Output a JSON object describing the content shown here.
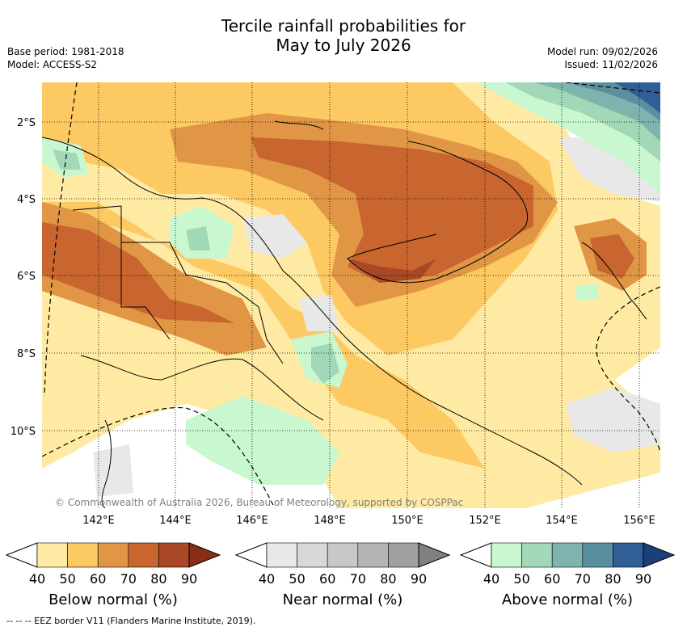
{
  "title": {
    "line1": "Tercile rainfall probabilities for",
    "line2": "May to July 2026"
  },
  "meta": {
    "base_period": "Base period: 1981-2018",
    "model": "Model: ACCESS-S2",
    "model_run": "Model run: 09/02/2026",
    "issued": "Issued: 11/02/2026"
  },
  "map": {
    "lat_labels": [
      "2°S",
      "4°S",
      "6°S",
      "8°S",
      "10°S"
    ],
    "lon_labels": [
      "142°E",
      "144°E",
      "146°E",
      "148°E",
      "150°E",
      "152°E",
      "154°E",
      "156°E"
    ],
    "copyright": "© Commonwealth of Australia 2026, Bureau of Meteorology, supported by COSPPac"
  },
  "colorbars": [
    {
      "label": "Below normal (%)",
      "ticks": [
        "40",
        "50",
        "60",
        "70",
        "80",
        "90"
      ],
      "colors": [
        "#ffffff",
        "#ffeaa3",
        "#fcc962",
        "#e09645",
        "#c9652f",
        "#a84826",
        "#8a2d17"
      ]
    },
    {
      "label": "Near normal (%)",
      "ticks": [
        "40",
        "50",
        "60",
        "70",
        "80",
        "90"
      ],
      "colors": [
        "#ffffff",
        "#e8e8e8",
        "#d8d8d8",
        "#c8c8c8",
        "#b4b4b4",
        "#a0a0a0",
        "#808080"
      ]
    },
    {
      "label": "Above normal (%)",
      "ticks": [
        "40",
        "50",
        "60",
        "70",
        "80",
        "90"
      ],
      "colors": [
        "#ffffff",
        "#c9f7cf",
        "#a2d8b8",
        "#7fb3ad",
        "#5a8fa0",
        "#2f5f94",
        "#1c3f7a"
      ]
    }
  ],
  "footer": "--  --  -- EEZ border V11 (Flanders Marine Institute, 2019)."
}
